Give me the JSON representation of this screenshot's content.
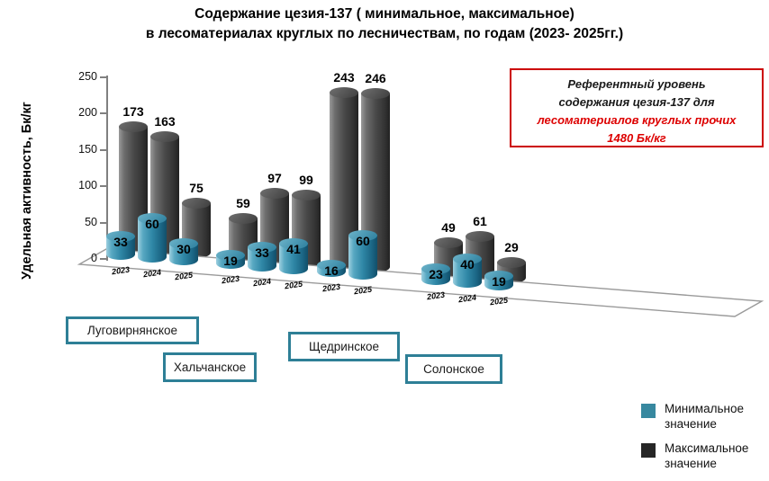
{
  "title": {
    "line1": "Содержание цезия-137 ( минимальное, максимальное)",
    "line2": "в лесоматериалах круглых по лесничествам, по годам (2023- 2025гг.)"
  },
  "y_axis": {
    "title": "Удельная активность, Бк/кг",
    "ticks": [
      0,
      50,
      100,
      150,
      200,
      250
    ]
  },
  "reference_box": {
    "line1": "Референтный уровень",
    "line2": "содержания цезия-137  для",
    "line3": "лесоматериалов круглых прочих",
    "line4": "1480 Бк/кг"
  },
  "legend": {
    "items": [
      {
        "line1": "Минимальное",
        "line2": "значение",
        "color": "#37889f"
      },
      {
        "line1": "Максимальное",
        "line2": "значение",
        "color": "#262626"
      }
    ]
  },
  "colors": {
    "min_series": "#2f87a6",
    "max_series": "#3f3f3f",
    "reference_text": "#dd0000",
    "name_box_border": "#2e7f96",
    "axis": "#808080"
  },
  "chart_data": {
    "type": "bar",
    "style": "3d-cylinder",
    "title": "Содержание цезия-137 ( минимальное, максимальное) в лесоматериалах круглых по лесничествам, по годам (2023- 2025гг.)",
    "xlabel": "",
    "ylabel": "Удельная активность, Бк/кг",
    "ylim": [
      0,
      250
    ],
    "grid": false,
    "legend_position": "bottom-right",
    "series_names": [
      "Минимальное значение",
      "Максимальное значение"
    ],
    "groups": [
      {
        "name": "Луговирнянское",
        "years": [
          "2023",
          "2024",
          "2025"
        ],
        "min": [
          33,
          60,
          30
        ],
        "max": [
          173,
          163,
          75
        ]
      },
      {
        "name": "Хальчанское",
        "years": [
          "2023",
          "2024",
          "2025"
        ],
        "min": [
          19,
          33,
          41
        ],
        "max": [
          59,
          97,
          99
        ]
      },
      {
        "name": "Щедринское",
        "years": [
          "2023",
          "2025"
        ],
        "min": [
          16,
          60
        ],
        "max": [
          243,
          246
        ]
      },
      {
        "name": "Солонское",
        "years": [
          "2023",
          "2024",
          "2025"
        ],
        "min": [
          23,
          40,
          19
        ],
        "max": [
          49,
          61,
          29
        ]
      }
    ],
    "reference_level_note": "Референтный уровень содержания цезия-137 для лесоматериалов круглых прочих 1480 Бк/кг",
    "reference_level_value_bq_kg": 1480
  }
}
